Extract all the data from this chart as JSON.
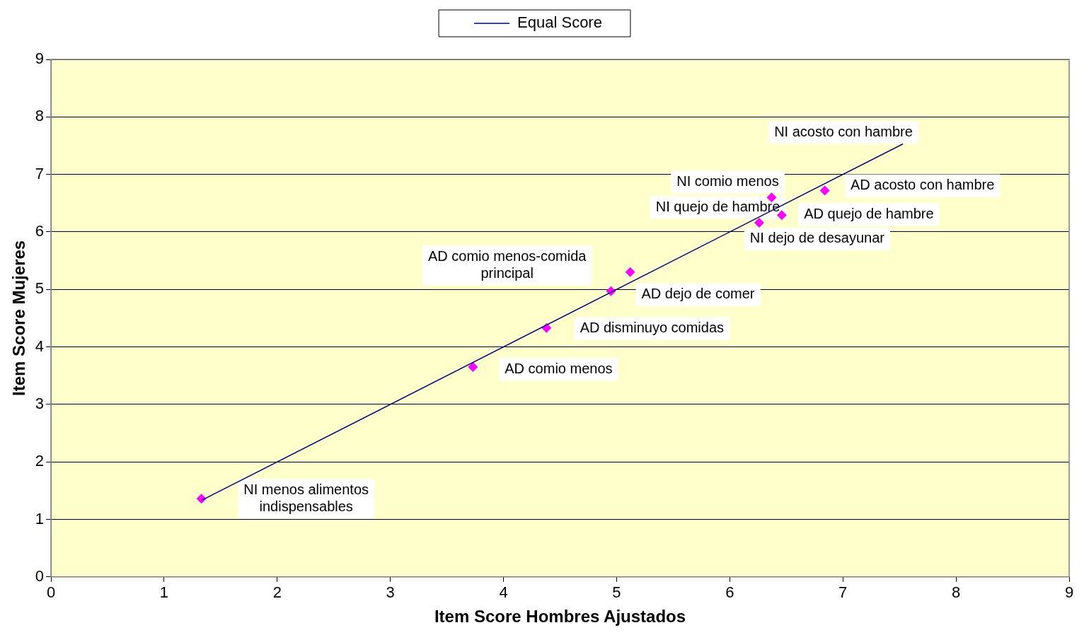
{
  "chart_data": {
    "type": "scatter",
    "xlabel": "Item Score Hombres Ajustados",
    "ylabel": "Item Score Mujeres",
    "xlim": [
      0,
      9
    ],
    "xticks": [
      0,
      1,
      2,
      3,
      4,
      5,
      6,
      7,
      8,
      9
    ],
    "ylim": [
      0,
      9
    ],
    "yticks": [
      0,
      1,
      2,
      3,
      4,
      5,
      6,
      7,
      8,
      9
    ],
    "grid": "y",
    "legend": "top",
    "marker": "diamond",
    "series": [
      {
        "type": "line",
        "name": "Equal Score",
        "color": "#000080",
        "x": [
          1.33,
          7.53
        ],
        "values": [
          1.33,
          7.53
        ],
        "marker": "none"
      },
      {
        "color": "#ff00ff",
        "x": [
          1.33,
          3.73,
          4.38,
          4.95,
          5.12,
          6.26,
          6.37,
          6.46,
          6.84
        ],
        "values": [
          1.36,
          3.65,
          4.33,
          4.97,
          5.3,
          6.16,
          6.6,
          6.29,
          6.72
        ]
      }
    ],
    "annotations": [
      {
        "text": "NI menos alimentos\nindispensables",
        "x": 1.33,
        "y": 1.36
      },
      {
        "text": "AD comio menos",
        "x": 3.73,
        "y": 3.65
      },
      {
        "text": "AD disminuyo comidas",
        "x": 4.38,
        "y": 4.33
      },
      {
        "text": "AD dejo de comer",
        "x": 4.95,
        "y": 4.97
      },
      "AD comio menos-comida\nprincipal",
      {
        "text": "NI dejo de desayunar",
        "x": 6.26,
        "y": 6.16
      },
      {
        "text": "NI comio menos",
        "x": 6.37,
        "y": 6.6
      },
      "NI quejo de hambre",
      {
        "text": "AD quejo de hambre",
        "x": 6.46,
        "y": 6.29
      },
      {
        "text": "AD acosto con hambre",
        "x": 6.84,
        "y": 6.72
      },
      {
        "text": "NI acosto con hambre",
        "x": 7.53,
        "y": 7.53
      }
    ]
  }
}
